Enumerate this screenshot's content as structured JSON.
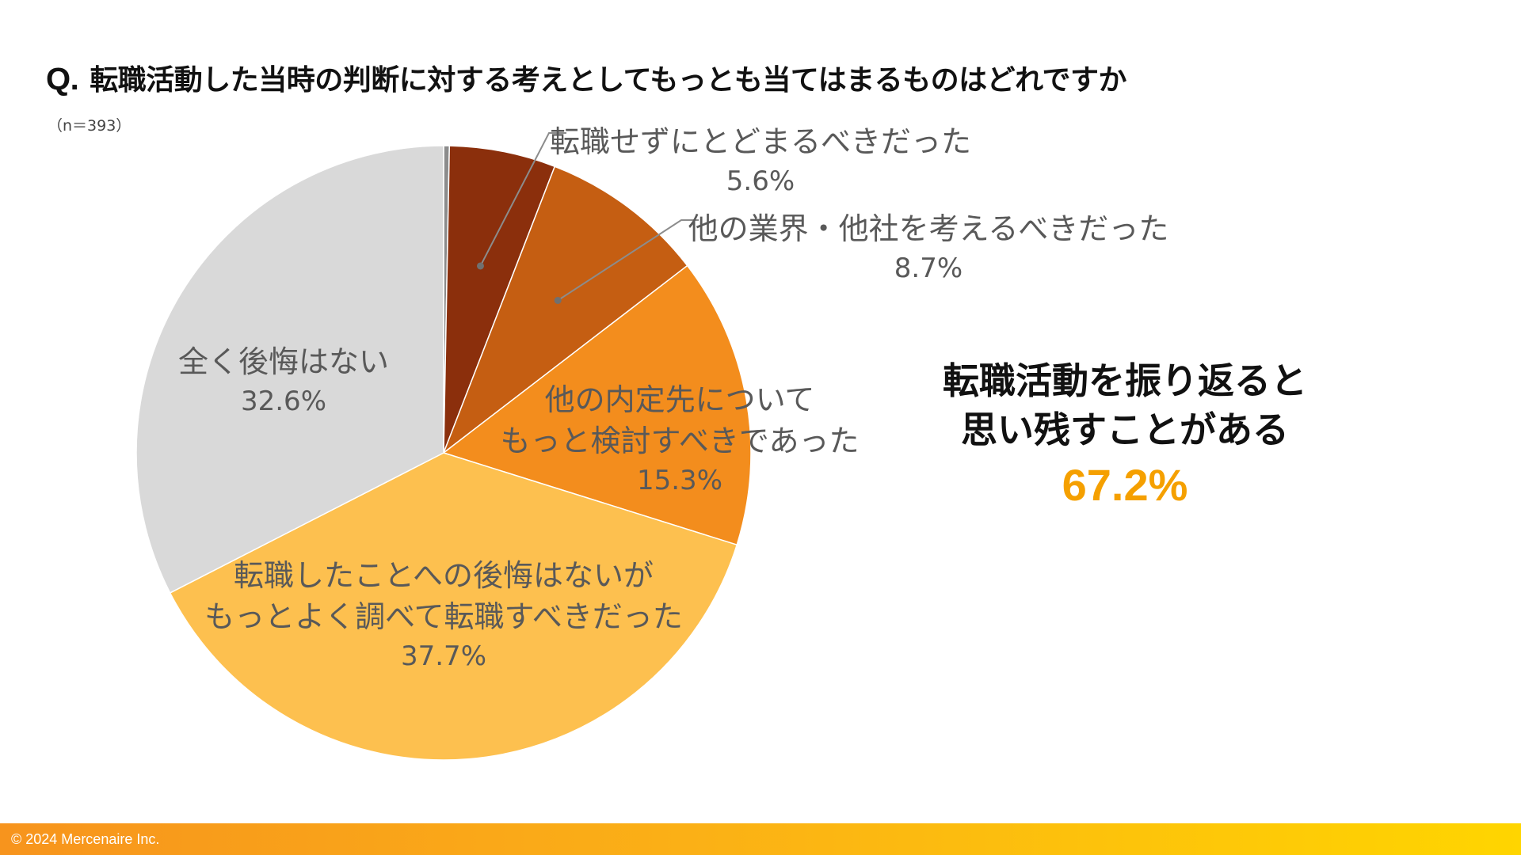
{
  "header": {
    "q_prefix": "Q.",
    "question": "転職活動した当時の判断に対する考えとしてもっとも当てはまるものはどれですか",
    "sample_size": "（n＝393）"
  },
  "chart_data": {
    "type": "pie",
    "title": "転職活動した当時の判断に対する考えとしてもっとも当てはまるものはどれですか",
    "start_angle_deg": 0,
    "direction": "clockwise",
    "slices": [
      {
        "name": "gap",
        "label_lines": [],
        "pct_label": "",
        "value": 0.3,
        "color": "#8C8C8C"
      },
      {
        "name": "should-not-change-job",
        "label_lines": [
          "転職せずにとどまるべきだった"
        ],
        "pct_label": "5.6%",
        "value": 5.6,
        "color": "#8B2F0C"
      },
      {
        "name": "consider-other-industries",
        "label_lines": [
          "他の業界・他社を考えるべきだった"
        ],
        "pct_label": "8.7%",
        "value": 8.7,
        "color": "#C55E12"
      },
      {
        "name": "consider-other-offers",
        "label_lines": [
          "他の内定先について",
          "もっと検討すべきであった"
        ],
        "pct_label": "15.3%",
        "value": 15.3,
        "color": "#F38D1D"
      },
      {
        "name": "should-research-more",
        "label_lines": [
          "転職したことへの後悔はないが",
          "もっとよく調べて転職すべきだった"
        ],
        "pct_label": "37.7%",
        "value": 37.7,
        "color": "#FDC04F"
      },
      {
        "name": "no-regret",
        "label_lines": [
          "全く後悔はない"
        ],
        "pct_label": "32.6%",
        "value": 32.6,
        "color": "#D9D9D9"
      }
    ]
  },
  "summary": {
    "line1": "転職活動を振り返ると",
    "line2": "思い残すことがある",
    "value": "67.2%",
    "value_color": "#F5A000"
  },
  "footer": {
    "copyright": "©  2024 Mercenaire Inc."
  }
}
